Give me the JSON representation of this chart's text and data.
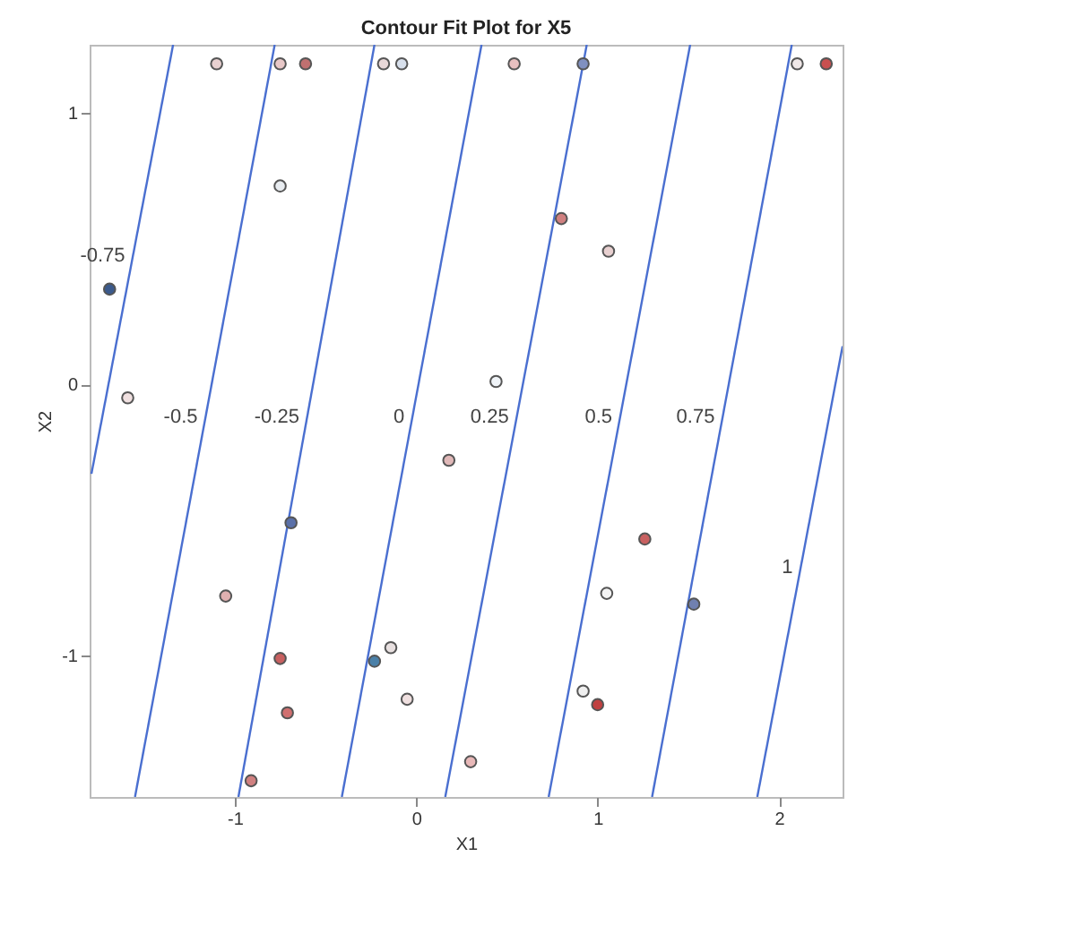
{
  "chart_data": {
    "type": "scatter",
    "title": "Contour Fit Plot for X5",
    "xlabel": "X1",
    "ylabel": "X2",
    "xlim": [
      -1.8,
      2.35
    ],
    "ylim": [
      -1.52,
      1.25
    ],
    "xticks": [
      -1,
      0,
      1,
      2
    ],
    "yticks": [
      -1,
      0,
      1
    ],
    "series": [
      {
        "name": "-0.75",
        "type": "line",
        "color": "#4a6fd0",
        "x": [
          -1.79,
          -1.34
        ],
        "values": [
          -0.33,
          1.25
        ]
      },
      {
        "name": "-0.5",
        "type": "line",
        "color": "#4a6fd0",
        "x": [
          -1.55,
          -0.78
        ],
        "values": [
          -1.52,
          1.25
        ]
      },
      {
        "name": "-0.25",
        "type": "line",
        "color": "#4a6fd0",
        "x": [
          -0.98,
          -0.23
        ],
        "values": [
          -1.52,
          1.25
        ]
      },
      {
        "name": "0",
        "type": "line",
        "color": "#4a6fd0",
        "x": [
          -0.41,
          0.36
        ],
        "values": [
          -1.52,
          1.25
        ]
      },
      {
        "name": "0.25",
        "type": "line",
        "color": "#4a6fd0",
        "x": [
          0.16,
          0.94
        ],
        "values": [
          -1.52,
          1.25
        ]
      },
      {
        "name": "0.5",
        "type": "line",
        "color": "#4a6fd0",
        "x": [
          0.73,
          1.51
        ],
        "values": [
          -1.52,
          1.25
        ]
      },
      {
        "name": "0.75",
        "type": "line",
        "color": "#4a6fd0",
        "x": [
          1.3,
          2.07
        ],
        "values": [
          -1.52,
          1.25
        ]
      },
      {
        "name": "1",
        "type": "line",
        "color": "#4a6fd0",
        "x": [
          1.88,
          2.35
        ],
        "values": [
          -1.52,
          0.14
        ]
      },
      {
        "marker": "circle",
        "x": [
          -1.1,
          -0.75,
          -0.61,
          -0.18,
          -0.08,
          0.54,
          0.92,
          2.1,
          2.26,
          -0.75,
          0.8,
          1.06,
          -1.69,
          0.44,
          -1.59,
          0.18,
          -0.69,
          1.26,
          -1.05,
          1.05,
          1.53,
          -0.14,
          -0.23,
          -0.75,
          -0.71,
          -0.05,
          0.92,
          1.0,
          0.3,
          -0.91
        ],
        "values": [
          1.18,
          1.18,
          1.18,
          1.18,
          1.18,
          1.18,
          1.18,
          1.18,
          1.18,
          0.73,
          0.61,
          0.49,
          0.35,
          0.01,
          -0.05,
          -0.28,
          -0.51,
          -0.57,
          -0.78,
          -0.77,
          -0.81,
          -0.97,
          -1.02,
          -1.01,
          -1.21,
          -1.16,
          -1.13,
          -1.18,
          -1.39,
          -1.46
        ],
        "colors": [
          "#e8d0d0",
          "#e8c8c8",
          "#c07070",
          "#e8d8d8",
          "#d8e0ec",
          "#e8c0c0",
          "#8090c0",
          "#f0e8e8",
          "#c85050",
          "#e8ecf0",
          "#d08080",
          "#e8d0d0",
          "#3b5a8c",
          "#f0f4f8",
          "#f0e0e0",
          "#e0b8b8",
          "#5a70a8",
          "#c86060",
          "#e0b0b0",
          "#f4f4f4",
          "#7080b0",
          "#e8e0e0",
          "#4a80a8",
          "#c86060",
          "#d07070",
          "#f0e0e0",
          "#f0f0f0",
          "#c04040",
          "#e8b8b8",
          "#d08080"
        ]
      }
    ]
  }
}
